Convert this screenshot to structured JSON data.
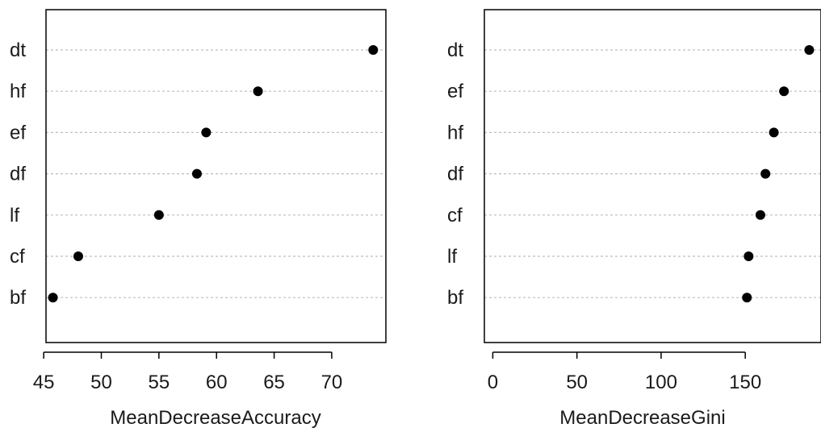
{
  "chart_data": [
    {
      "type": "scatter",
      "title": "",
      "xlabel": "MeanDecreaseAccuracy",
      "ylabel": "",
      "categories": [
        "dt",
        "hf",
        "ef",
        "df",
        "lf",
        "cf",
        "bf"
      ],
      "values": [
        73.6,
        63.6,
        59.1,
        58.3,
        55.0,
        48.0,
        45.8
      ],
      "x_ticks": [
        45,
        50,
        55,
        60,
        65,
        70
      ],
      "xlim": [
        45.2,
        74.7
      ],
      "grid": "dotted horizontal",
      "legend": "none"
    },
    {
      "type": "scatter",
      "title": "",
      "xlabel": "MeanDecreaseGini",
      "ylabel": "",
      "categories": [
        "dt",
        "ef",
        "hf",
        "df",
        "cf",
        "lf",
        "bf"
      ],
      "values": [
        188,
        173,
        167,
        162,
        159,
        152,
        151
      ],
      "x_ticks": [
        0,
        50,
        100,
        150
      ],
      "xlim": [
        -5,
        195
      ],
      "grid": "dotted horizontal",
      "legend": "none"
    }
  ]
}
